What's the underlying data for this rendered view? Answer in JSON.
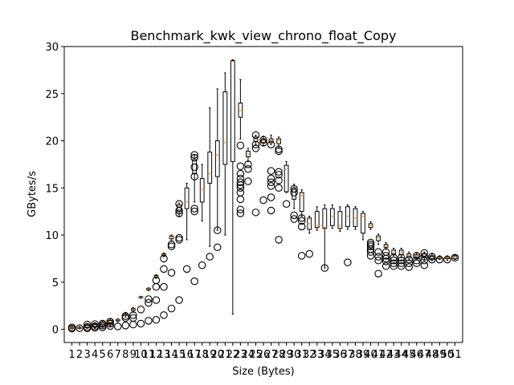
{
  "chart_data": {
    "type": "box",
    "title": "Benchmark_kwk_view_chrono_float_Copy",
    "xlabel": "Size (Bytes)",
    "ylabel": "GBytes/s",
    "ylim": [
      -1.4,
      30
    ],
    "yticks": [
      0,
      5,
      10,
      15,
      20,
      25,
      30
    ],
    "categories": [
      "1",
      "2",
      "3",
      "4",
      "5",
      "6",
      "7",
      "8",
      "9",
      "10",
      "11",
      "12",
      "13",
      "14",
      "15",
      "16",
      "17",
      "18",
      "19",
      "20",
      "21",
      "22",
      "23",
      "24",
      "25",
      "26",
      "27",
      "28",
      "29",
      "30",
      "31",
      "32",
      "33",
      "34",
      "35",
      "36",
      "37",
      "38",
      "39",
      "40",
      "41",
      "42",
      "43",
      "44",
      "45",
      "46",
      "47",
      "48",
      "49",
      "50",
      "51"
    ],
    "grid": false,
    "colors": {
      "box": "#000000",
      "median": "#ff7f0e",
      "flier": "#000000"
    },
    "boxes": [
      {
        "min": 0.05,
        "q1": 0.1,
        "median": 0.15,
        "q3": 0.22,
        "max": 0.3,
        "fliers": [
          0.08,
          0.2
        ]
      },
      {
        "min": 0.05,
        "q1": 0.1,
        "median": 0.15,
        "q3": 0.2,
        "max": 0.3,
        "fliers": [
          0.12
        ]
      },
      {
        "min": 0.1,
        "q1": 0.2,
        "median": 0.3,
        "q3": 0.45,
        "max": 0.6,
        "fliers": [
          0.1,
          0.25,
          0.5
        ]
      },
      {
        "min": 0.1,
        "q1": 0.3,
        "median": 0.5,
        "q3": 0.6,
        "max": 0.7,
        "fliers": [
          0.15,
          0.3,
          0.55
        ]
      },
      {
        "min": 0.2,
        "q1": 0.4,
        "median": 0.6,
        "q3": 0.75,
        "max": 0.9,
        "fliers": [
          0.2,
          0.4,
          0.6
        ]
      },
      {
        "min": 0.3,
        "q1": 0.6,
        "median": 0.8,
        "q3": 0.95,
        "max": 1.1,
        "fliers": [
          0.35,
          0.6,
          0.8
        ]
      },
      {
        "min": 0.8,
        "q1": 0.9,
        "median": 1.0,
        "q3": 1.05,
        "max": 1.1,
        "fliers": [
          0.3
        ]
      },
      {
        "min": 1.3,
        "q1": 1.5,
        "median": 1.6,
        "q3": 1.7,
        "max": 1.8,
        "fliers": [
          0.4,
          1.2,
          1.4
        ]
      },
      {
        "min": 1.8,
        "q1": 2.0,
        "median": 2.1,
        "q3": 2.2,
        "max": 2.3,
        "fliers": [
          0.5,
          1.2,
          1.5
        ]
      },
      {
        "min": 3.3,
        "q1": 3.35,
        "median": 3.4,
        "q3": 3.45,
        "max": 3.5,
        "fliers": [
          0.6,
          2.1
        ]
      },
      {
        "min": 4.1,
        "q1": 4.2,
        "median": 4.3,
        "q3": 4.35,
        "max": 4.4,
        "fliers": [
          0.9,
          2.8,
          3.2
        ]
      },
      {
        "min": 5.4,
        "q1": 5.5,
        "median": 5.6,
        "q3": 5.7,
        "max": 5.8,
        "fliers": [
          1.0,
          3.1,
          4.5,
          5.2
        ]
      },
      {
        "min": 7.7,
        "q1": 7.8,
        "median": 7.9,
        "q3": 8.0,
        "max": 8.1,
        "fliers": [
          1.5,
          4.5,
          6.4,
          7.5
        ]
      },
      {
        "min": 9.4,
        "q1": 9.6,
        "median": 9.8,
        "q3": 9.9,
        "max": 10.0,
        "fliers": [
          2.2,
          6.0,
          8.8,
          9.0
        ]
      },
      {
        "min": 12.0,
        "q1": 12.5,
        "median": 13.0,
        "q3": 13.2,
        "max": 13.4,
        "fliers": [
          3.1,
          9.5,
          9.7,
          12.3,
          12.6,
          13.3
        ]
      },
      {
        "min": 9.5,
        "q1": 12.8,
        "median": 13.5,
        "q3": 15.0,
        "max": 15.5,
        "fliers": [
          6.4
        ]
      },
      {
        "min": 13.5,
        "q1": 16.5,
        "median": 17.5,
        "q3": 18.0,
        "max": 18.5,
        "fliers": [
          5.1,
          12.5,
          12.8,
          16.2,
          17.2,
          18.2,
          18.5
        ]
      },
      {
        "min": 11.5,
        "q1": 13.5,
        "median": 14.8,
        "q3": 16.0,
        "max": 17.5,
        "fliers": [
          6.8
        ]
      },
      {
        "min": 8.8,
        "q1": 15.5,
        "median": 16.5,
        "q3": 18.8,
        "max": 23.5,
        "fliers": [
          7.7
        ]
      },
      {
        "min": 10.5,
        "q1": 16.2,
        "median": 18.5,
        "q3": 20.0,
        "max": 25.5,
        "fliers": [
          8.7,
          10.5
        ]
      },
      {
        "min": 10.0,
        "q1": 17.5,
        "median": 19.8,
        "q3": 25.2,
        "max": 27.2,
        "fliers": []
      },
      {
        "min": 1.6,
        "q1": 17.8,
        "median": 28.4,
        "q3": 28.5,
        "max": 28.6,
        "fliers": []
      },
      {
        "min": 20.2,
        "q1": 22.5,
        "median": 23.2,
        "q3": 24.0,
        "max": 26.5,
        "fliers": [
          12.3,
          12.7,
          13.8,
          14.5,
          15.0,
          15.3,
          15.6,
          16.0,
          16.5,
          17.3,
          19.5
        ]
      },
      {
        "min": 17.8,
        "q1": 18.3,
        "median": 18.6,
        "q3": 18.9,
        "max": 19.2,
        "fliers": [
          15.7,
          17.0,
          17.5
        ]
      },
      {
        "min": 19.5,
        "q1": 19.9,
        "median": 20.2,
        "q3": 20.4,
        "max": 20.6,
        "fliers": [
          12.4,
          19.2,
          19.6,
          20.6
        ]
      },
      {
        "min": 19.5,
        "q1": 19.8,
        "median": 20.0,
        "q3": 20.2,
        "max": 20.5,
        "fliers": [
          13.7,
          19.8,
          20.1
        ]
      },
      {
        "min": 19.6,
        "q1": 19.8,
        "median": 20.0,
        "q3": 20.2,
        "max": 20.6,
        "fliers": [
          12.6,
          14.0,
          15.2,
          15.6,
          16.0,
          16.8,
          19.6
        ]
      },
      {
        "min": 19.2,
        "q1": 19.7,
        "median": 20.0,
        "q3": 20.2,
        "max": 20.4,
        "fliers": [
          9.5,
          15.0,
          15.8,
          16.4,
          16.7,
          18.9,
          19.1
        ]
      },
      {
        "min": 14.5,
        "q1": 14.6,
        "median": 17.0,
        "q3": 17.4,
        "max": 17.8,
        "fliers": [
          13.3
        ]
      },
      {
        "min": 12.8,
        "q1": 13.8,
        "median": 14.6,
        "q3": 15.0,
        "max": 15.4,
        "fliers": [
          11.7,
          12.1,
          14.5,
          14.9
        ]
      },
      {
        "min": 12.0,
        "q1": 12.5,
        "median": 14.2,
        "q3": 14.5,
        "max": 14.8,
        "fliers": [
          7.8,
          10.9,
          11.5,
          11.8
        ]
      },
      {
        "min": 10.2,
        "q1": 10.6,
        "median": 11.2,
        "q3": 11.8,
        "max": 12.0,
        "fliers": [
          8.0
        ]
      },
      {
        "min": 10.5,
        "q1": 10.8,
        "median": 11.0,
        "q3": 12.5,
        "max": 13.0,
        "fliers": []
      },
      {
        "min": 6.5,
        "q1": 10.7,
        "median": 10.8,
        "q3": 12.8,
        "max": 13.2,
        "fliers": [
          6.5
        ]
      },
      {
        "min": 10.7,
        "q1": 11.0,
        "median": 12.0,
        "q3": 12.8,
        "max": 13.2,
        "fliers": []
      },
      {
        "min": 10.4,
        "q1": 10.7,
        "median": 11.0,
        "q3": 12.5,
        "max": 13.0,
        "fliers": []
      },
      {
        "min": 10.6,
        "q1": 10.9,
        "median": 12.0,
        "q3": 13.0,
        "max": 13.2,
        "fliers": [
          7.1
        ]
      },
      {
        "min": 10.6,
        "q1": 10.9,
        "median": 11.8,
        "q3": 12.8,
        "max": 13.0,
        "fliers": []
      },
      {
        "min": 9.5,
        "q1": 10.2,
        "median": 12.0,
        "q3": 12.3,
        "max": 12.5,
        "fliers": []
      },
      {
        "min": 10.6,
        "q1": 10.8,
        "median": 11.0,
        "q3": 11.2,
        "max": 11.4,
        "fliers": [
          7.8,
          8.2,
          8.5,
          8.8,
          9.0,
          9.2
        ]
      },
      {
        "min": 9.0,
        "q1": 9.4,
        "median": 9.7,
        "q3": 9.9,
        "max": 10.1,
        "fliers": [
          5.9,
          7.3,
          7.7,
          8.2
        ]
      },
      {
        "min": 8.5,
        "q1": 8.7,
        "median": 8.9,
        "q3": 9.0,
        "max": 9.2,
        "fliers": [
          6.7,
          7.2,
          7.5,
          7.8,
          8.2
        ]
      },
      {
        "min": 7.8,
        "q1": 8.0,
        "median": 8.2,
        "q3": 8.4,
        "max": 8.6,
        "fliers": [
          6.7,
          7.0,
          7.3,
          7.6
        ]
      },
      {
        "min": 7.6,
        "q1": 7.9,
        "median": 8.2,
        "q3": 8.4,
        "max": 8.6,
        "fliers": [
          6.7,
          7.0,
          7.3,
          7.6
        ]
      },
      {
        "min": 7.3,
        "q1": 7.6,
        "median": 7.8,
        "q3": 8.0,
        "max": 8.2,
        "fliers": [
          6.6,
          7.0,
          7.4
        ]
      },
      {
        "min": 7.4,
        "q1": 7.6,
        "median": 7.8,
        "q3": 7.9,
        "max": 8.1,
        "fliers": [
          7.0,
          7.3,
          7.8
        ]
      },
      {
        "min": 7.3,
        "q1": 7.6,
        "median": 7.8,
        "q3": 8.0,
        "max": 8.2,
        "fliers": [
          6.8,
          7.3,
          7.7,
          8.1
        ]
      },
      {
        "min": 7.3,
        "q1": 7.5,
        "median": 7.7,
        "q3": 7.8,
        "max": 8.0,
        "fliers": [
          7.4,
          7.7
        ]
      },
      {
        "min": 7.4,
        "q1": 7.5,
        "median": 7.6,
        "q3": 7.7,
        "max": 7.8,
        "fliers": [
          7.4
        ]
      },
      {
        "min": 7.3,
        "q1": 7.5,
        "median": 7.6,
        "q3": 7.7,
        "max": 7.8,
        "fliers": [
          7.4
        ]
      },
      {
        "min": 7.4,
        "q1": 7.5,
        "median": 7.7,
        "q3": 7.8,
        "max": 7.9,
        "fliers": [
          7.6
        ]
      }
    ]
  }
}
